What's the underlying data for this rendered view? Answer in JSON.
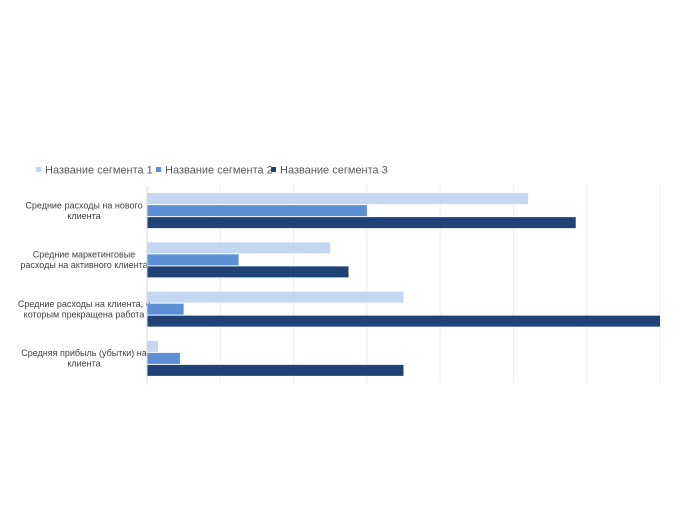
{
  "chart_data": {
    "type": "bar",
    "orientation": "horizontal",
    "title": "",
    "xlabel": "",
    "ylabel": "",
    "grid": true,
    "legend_position": "top",
    "categories": [
      [
        "Средние расходы на нового",
        "клиента"
      ],
      [
        "Средние маркетинговые",
        "расходы на активного клиента"
      ],
      [
        "Средние расходы на клиента, с",
        "которым прекращена работа"
      ],
      [
        "Средняя прибыль (убытки) на",
        "клиента"
      ]
    ],
    "xlim": [
      0,
      7
    ],
    "series": [
      {
        "name": "Название сегмента 1",
        "color": "#c5d7f0",
        "values": [
          5.2,
          2.5,
          3.5,
          0.15
        ]
      },
      {
        "name": "Название сегмента 2",
        "color": "#5b8fd6",
        "values": [
          3.0,
          1.25,
          0.5,
          0.45
        ]
      },
      {
        "name": "Название сегмента 3",
        "color": "#1f4277",
        "values": [
          5.85,
          2.75,
          7.0,
          3.5
        ]
      }
    ]
  }
}
